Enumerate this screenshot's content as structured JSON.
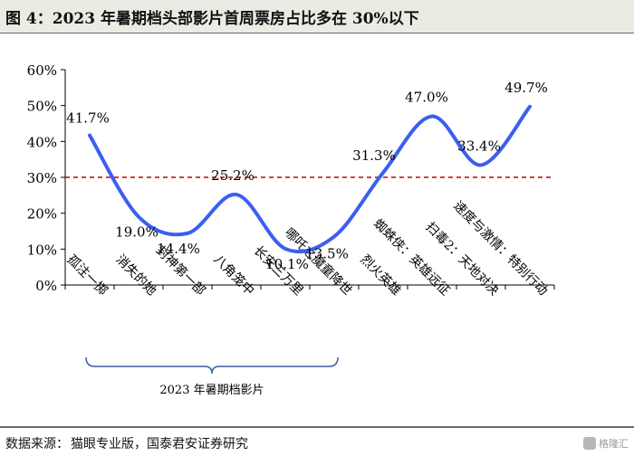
{
  "header": {
    "title": "图 4：2023 年暑期档头部影片首周票房占比多在 30%以下"
  },
  "footer": {
    "source_label": "数据来源：",
    "source_text": "猫眼专业版，国泰君安证券研究",
    "watermark": "格隆汇"
  },
  "chart_data": {
    "type": "line",
    "title": "2023 年暑期档头部影片首周票房占比多在 30%以下",
    "categories": [
      "孤注一掷",
      "消失的她",
      "封神第一部",
      "八角笼中",
      "长安三万里",
      "哪吒之魔童降世",
      "烈火英雄",
      "蜘蛛侠：英雄远征",
      "扫毒2：天地对决",
      "速度与激情：特别行动"
    ],
    "values": [
      41.7,
      19.0,
      14.4,
      25.2,
      10.1,
      13.5,
      31.3,
      47.0,
      33.4,
      49.7
    ],
    "value_labels": [
      "41.7%",
      "19.0%",
      "14.4%",
      "25.2%",
      "10.1%",
      "13.5%",
      "31.3%",
      "47.0%",
      "33.4%",
      "49.7%"
    ],
    "ylim": [
      0,
      60
    ],
    "yticks": [
      "0%",
      "10%",
      "20%",
      "30%",
      "40%",
      "50%",
      "60%"
    ],
    "reference_line": {
      "value": 30,
      "color": "#c00000",
      "style": "dashed"
    },
    "bracket_label": "2023 年暑期档影片",
    "bracket_covers": [
      0,
      5
    ],
    "line_color": "#3b5ff0",
    "xlabel": "",
    "ylabel": "",
    "legend": "none",
    "grid": false
  }
}
